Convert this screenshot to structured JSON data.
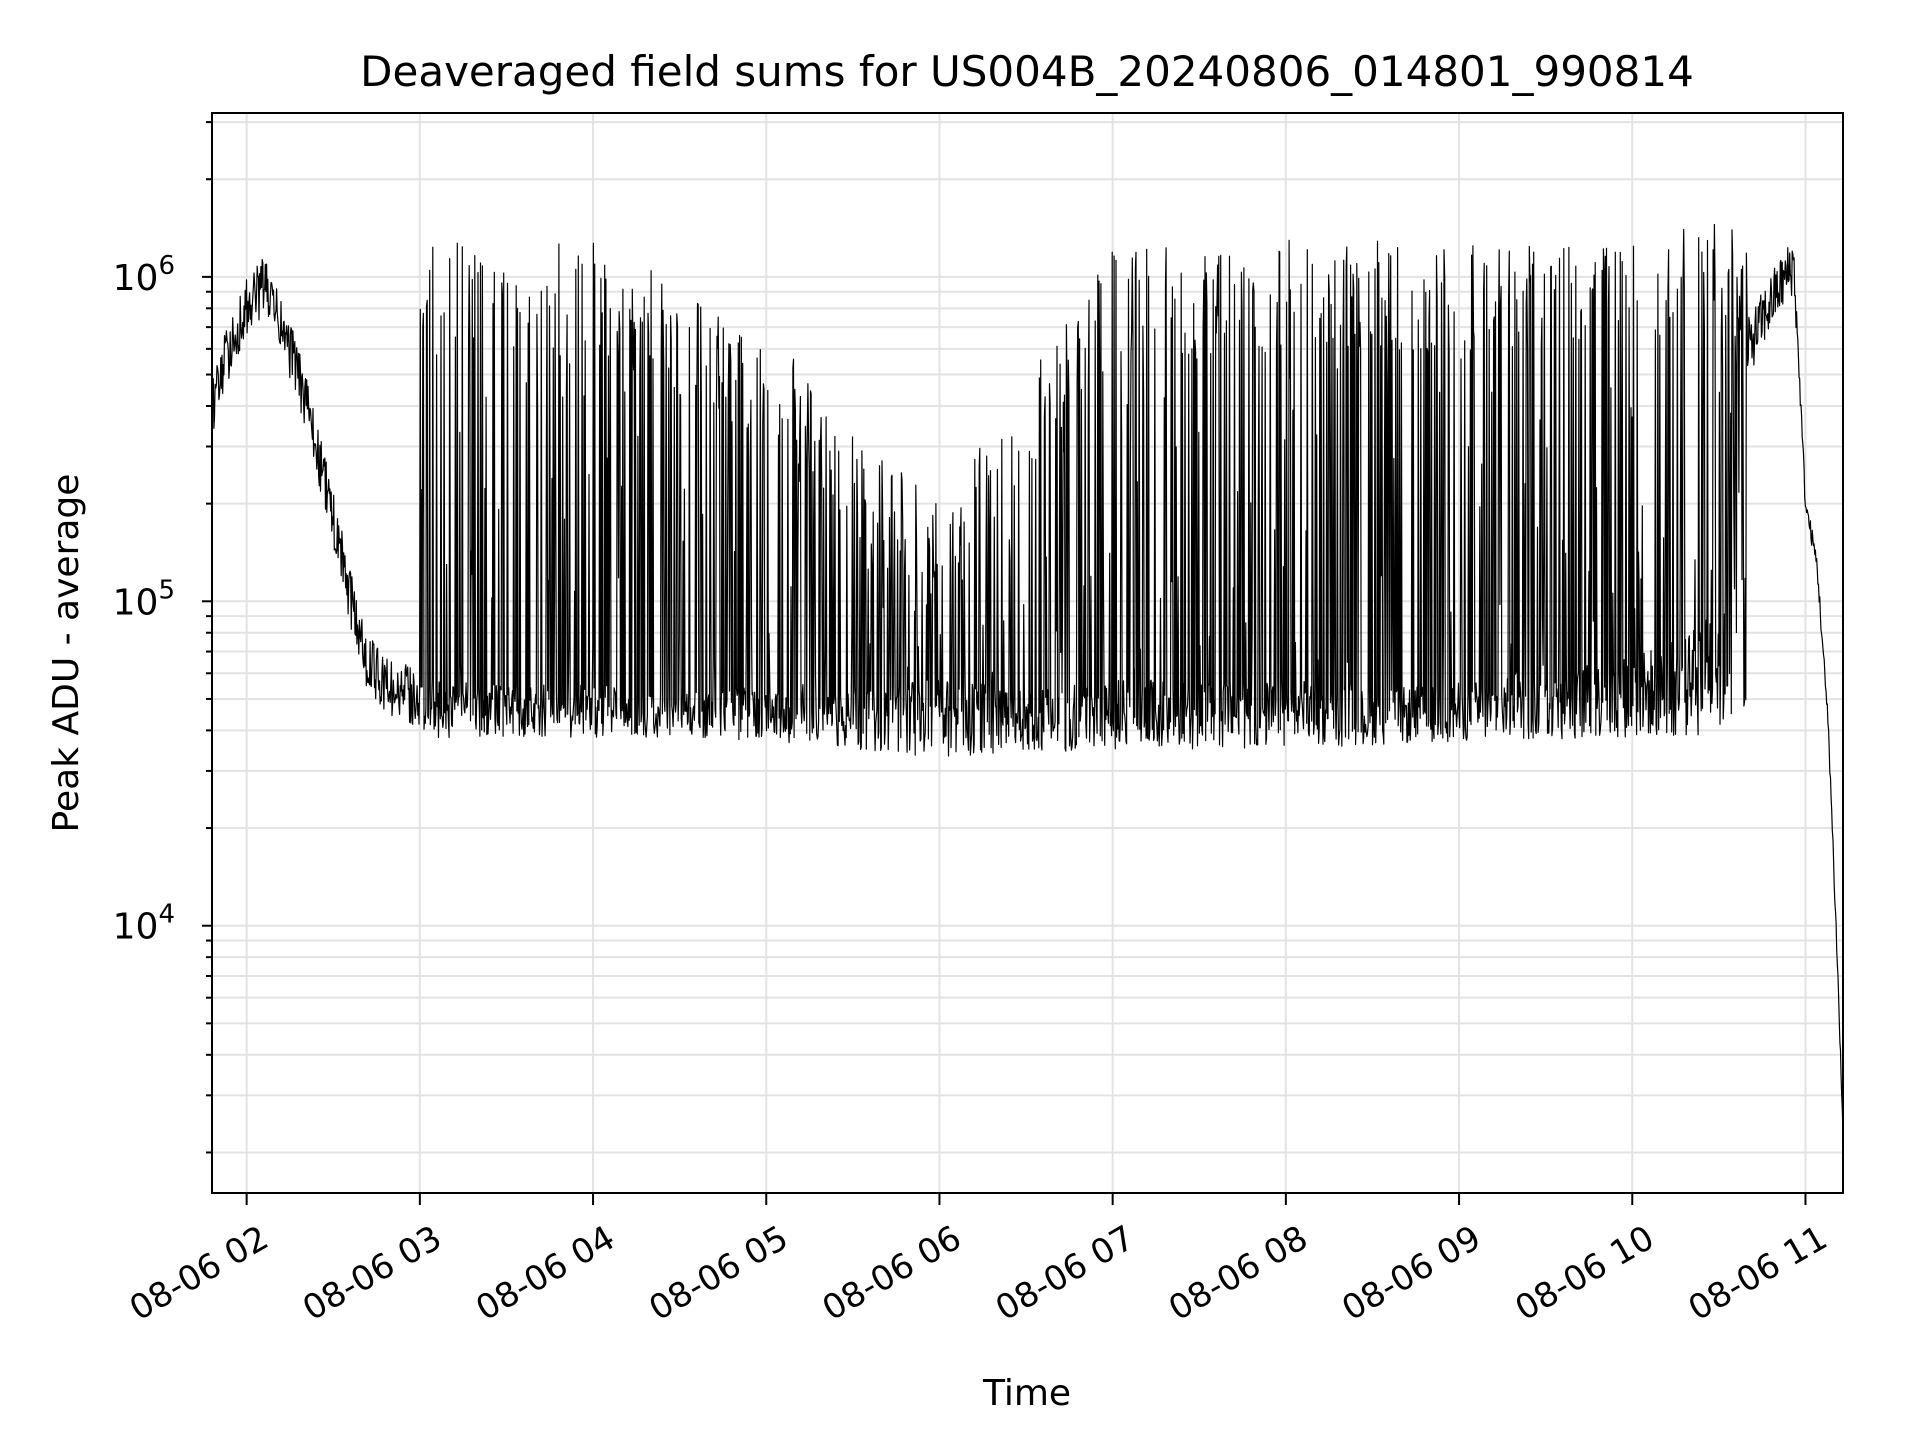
{
  "chart_data": {
    "type": "line",
    "title": "Deaveraged field sums for US004B_20240806_014801_990814",
    "xlabel": "Time",
    "ylabel": "Peak ADU - average",
    "yscale": "log",
    "xlim": [
      "08-06 01:48",
      "08-06 11:13"
    ],
    "ylim": [
      1500,
      3200000
    ],
    "grid": true,
    "line_color": "#000000",
    "x_ticks": [
      "08-06 02",
      "08-06 03",
      "08-06 04",
      "08-06 05",
      "08-06 06",
      "08-06 07",
      "08-06 08",
      "08-06 09",
      "08-06 10",
      "08-06 11"
    ],
    "y_ticks": [
      {
        "base": "10",
        "exp": "4",
        "value": 10000
      },
      {
        "base": "10",
        "exp": "5",
        "value": 100000
      },
      {
        "base": "10",
        "exp": "6",
        "value": 1000000
      }
    ],
    "series": [
      {
        "sampled_points": [
          [
            "08-06 01:48",
            400000
          ],
          [
            "08-06 01:54",
            600000
          ],
          [
            "08-06 02:00",
            800000
          ],
          [
            "08-06 02:06",
            950000
          ],
          [
            "08-06 02:12",
            700000
          ],
          [
            "08-06 02:18",
            500000
          ],
          [
            "08-06 02:24",
            300000
          ],
          [
            "08-06 02:30",
            180000
          ],
          [
            "08-06 02:36",
            100000
          ],
          [
            "08-06 02:42",
            65000
          ],
          [
            "08-06 02:48",
            55000
          ],
          [
            "08-06 03:00",
            50000
          ],
          [
            "08-06 03:30",
            48000
          ],
          [
            "08-06 04:00",
            48000
          ],
          [
            "08-06 04:30",
            47000
          ],
          [
            "08-06 05:00",
            46000
          ],
          [
            "08-06 05:30",
            45000
          ],
          [
            "08-06 06:00",
            47000
          ],
          [
            "08-06 06:30",
            45000
          ],
          [
            "08-06 07:00",
            48000
          ],
          [
            "08-06 07:30",
            47000
          ],
          [
            "08-06 08:00",
            48000
          ],
          [
            "08-06 08:30",
            46000
          ],
          [
            "08-06 09:00",
            48000
          ],
          [
            "08-06 09:30",
            50000
          ],
          [
            "08-06 10:00",
            55000
          ],
          [
            "08-06 10:20",
            60000
          ],
          [
            "08-06 10:30",
            80000
          ],
          [
            "08-06 10:40",
            600000
          ],
          [
            "08-06 10:50",
            900000
          ],
          [
            "08-06 10:56",
            1100000
          ],
          [
            "08-06 11:00",
            200000
          ],
          [
            "08-06 11:04",
            130000
          ],
          [
            "08-06 11:08",
            40000
          ],
          [
            "08-06 11:11",
            8000
          ],
          [
            "08-06 11:13",
            2300
          ]
        ],
        "band_high": [
          [
            "08-06 03:00",
            1300000
          ],
          [
            "08-06 04:00",
            1300000
          ],
          [
            "08-06 05:00",
            700000
          ],
          [
            "08-06 06:00",
            200000
          ],
          [
            "08-06 07:00",
            1200000
          ],
          [
            "08-06 08:00",
            1300000
          ],
          [
            "08-06 09:00",
            1300000
          ],
          [
            "08-06 10:00",
            1400000
          ],
          [
            "08-06 10:40",
            1500000
          ]
        ],
        "band_low": [
          [
            "08-06 03:00",
            38000
          ],
          [
            "08-06 04:00",
            38000
          ],
          [
            "08-06 05:00",
            37000
          ],
          [
            "08-06 06:00",
            33000
          ],
          [
            "08-06 07:00",
            35000
          ],
          [
            "08-06 08:00",
            35000
          ],
          [
            "08-06 09:00",
            37000
          ],
          [
            "08-06 10:00",
            38000
          ]
        ]
      }
    ]
  }
}
